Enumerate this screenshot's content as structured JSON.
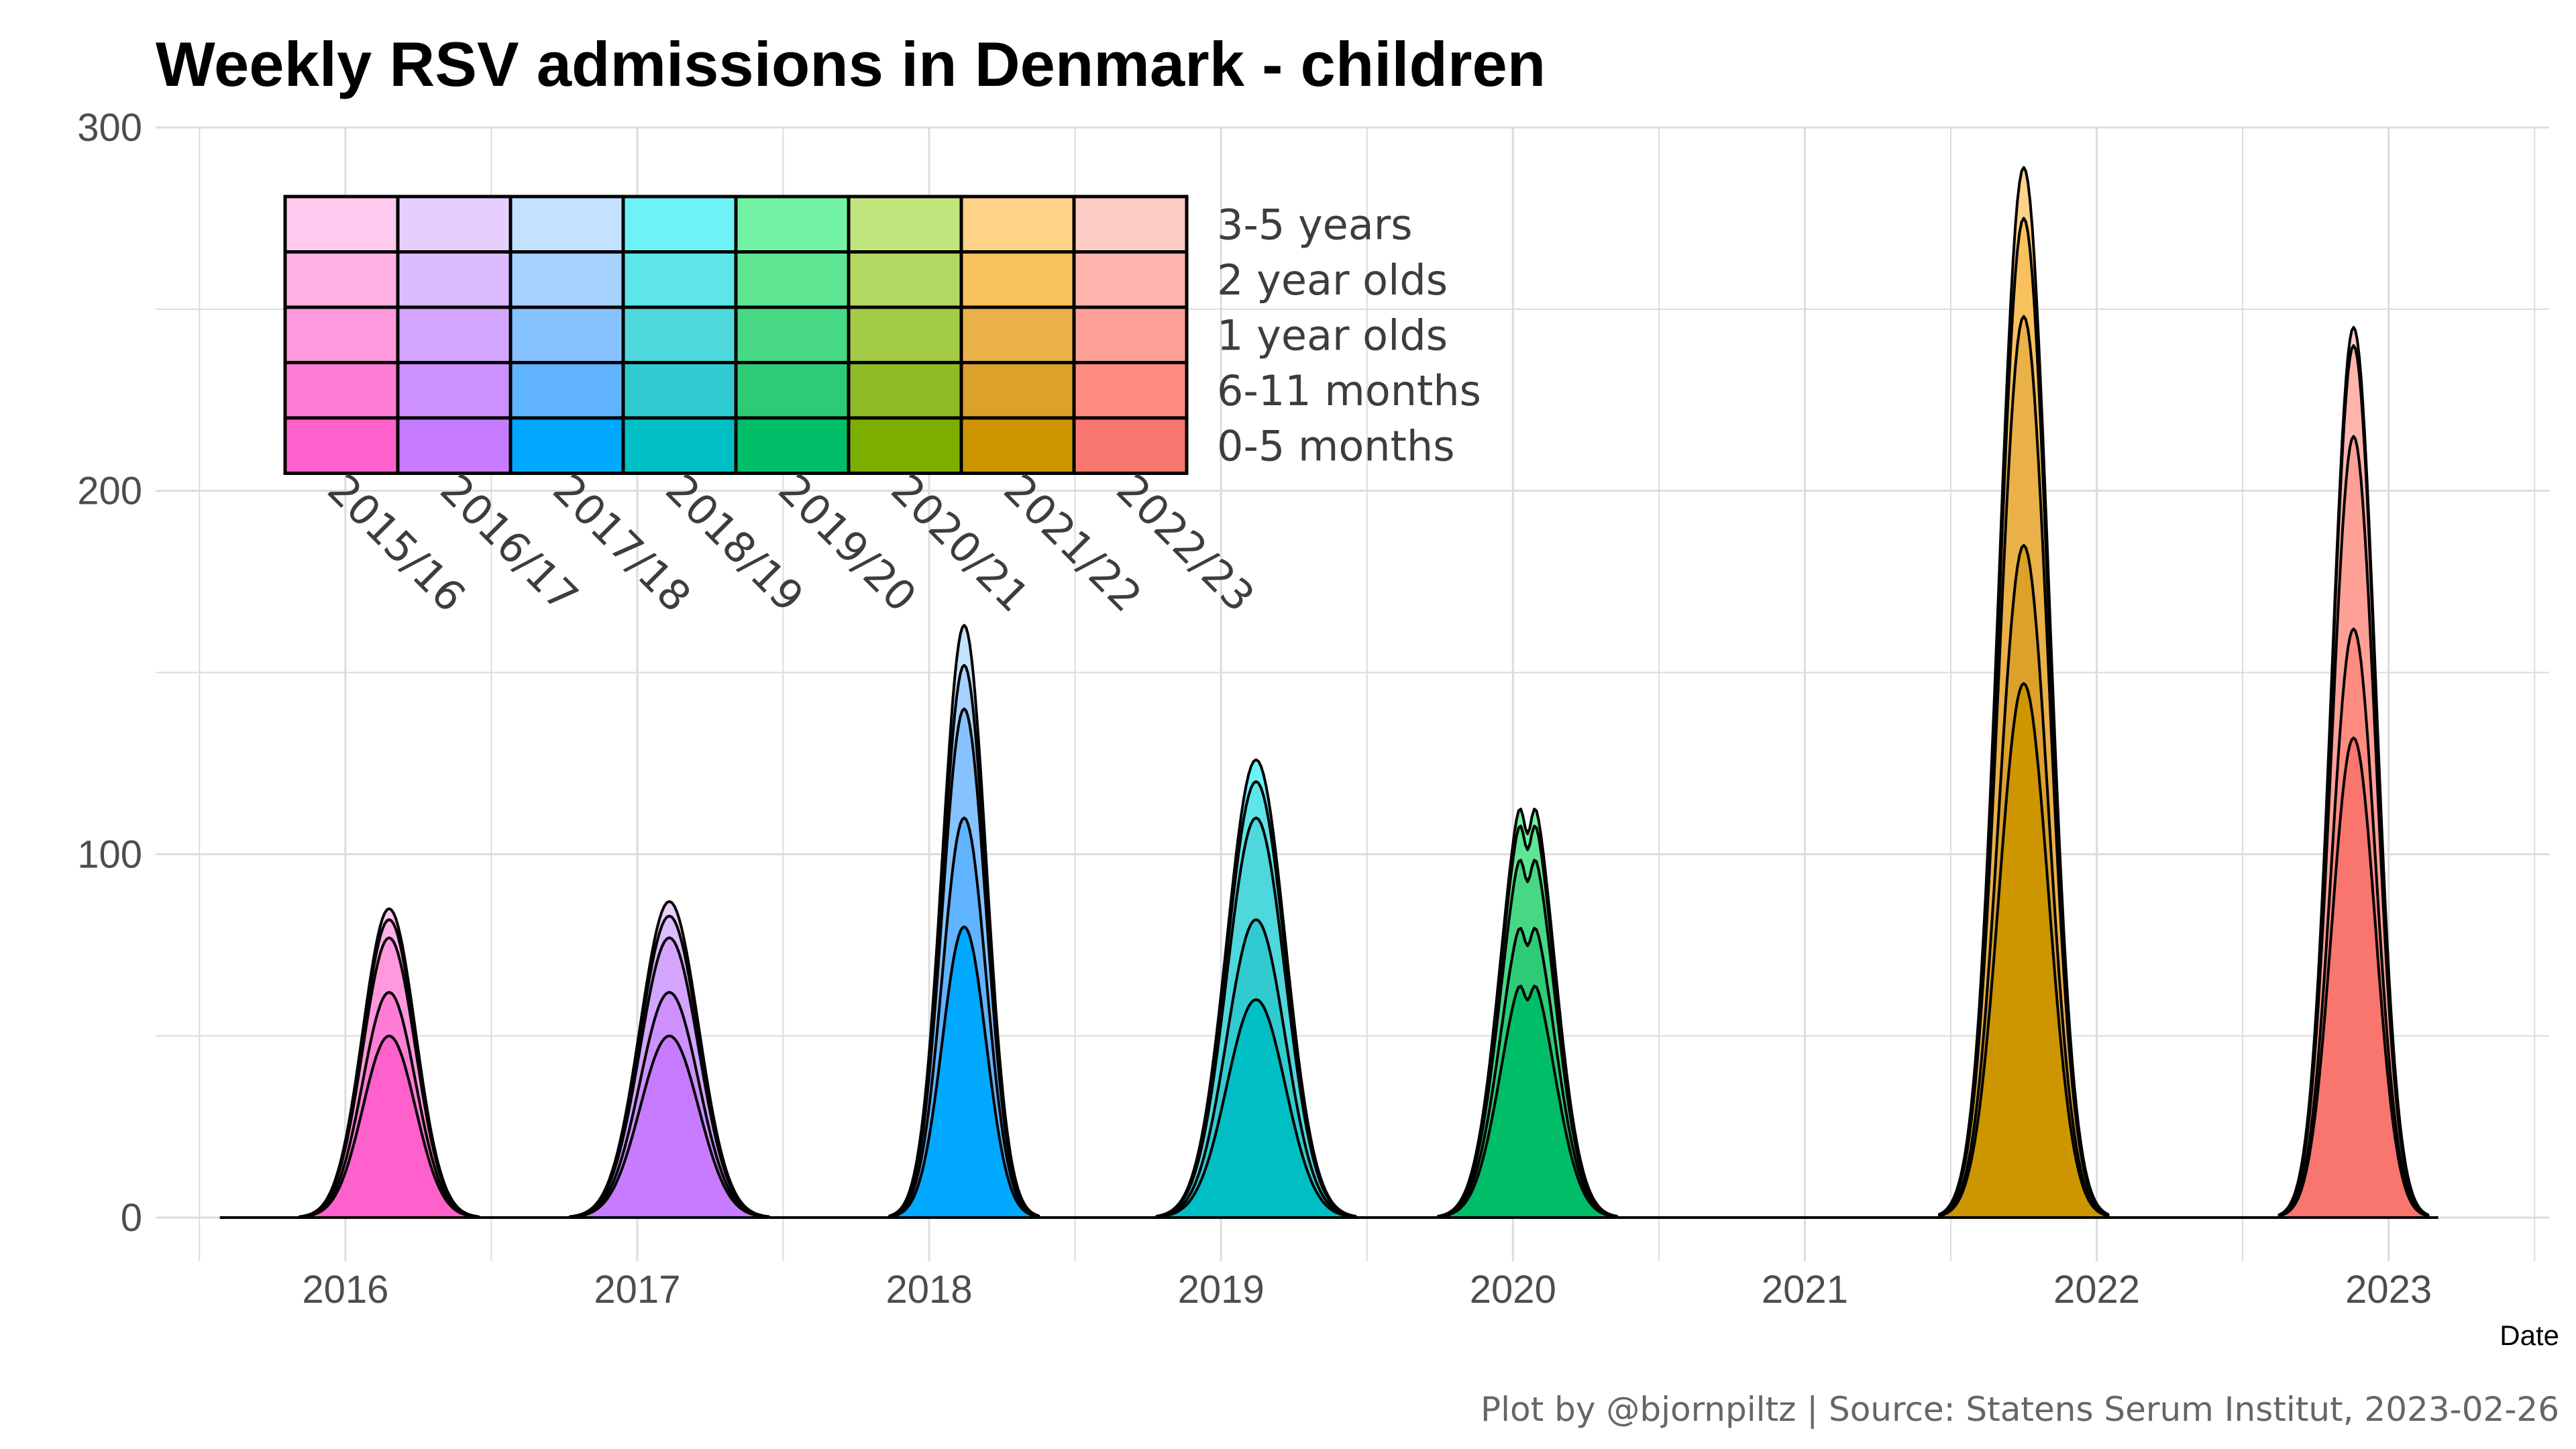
{
  "chart_data": {
    "type": "area",
    "title": "Weekly RSV admissions in Denmark - children",
    "xlabel": "Date",
    "ylabel": "",
    "caption": "Plot by @bjornpiltz | Source: Statens Serum Institut, 2023-02-26",
    "ylim": [
      -12,
      300
    ],
    "yticks": [
      0,
      100,
      200,
      300
    ],
    "xlim": [
      2015.35,
      2023.55
    ],
    "xticks": [
      2016,
      2017,
      2018,
      2019,
      2020,
      2021,
      2022,
      2023
    ],
    "x_range_data": [
      2015.57,
      2023.17
    ],
    "stacking": "stacked areas, cumulative totals per age group",
    "grid": true,
    "legend_position": "top-left, inside plot",
    "age_groups": [
      "0-5 months",
      "6-11 months",
      "1 year olds",
      "2 year olds",
      "3-5 years"
    ],
    "legend_age_order": [
      "3-5 years",
      "2 year olds",
      "1 year olds",
      "6-11 months",
      "0-5 months"
    ],
    "seasons": [
      {
        "name": "2015/16",
        "peak_x": 2016.15,
        "width": 0.09,
        "cumulative_peaks": [
          50,
          62,
          77,
          82,
          85
        ],
        "colors": [
          "#FF61CC",
          "#FF7DD4",
          "#FF98DC",
          "#FFB1E5",
          "#FFCAEE"
        ]
      },
      {
        "name": "2016/17",
        "peak_x": 2017.11,
        "width": 0.1,
        "cumulative_peaks": [
          50,
          62,
          77,
          83,
          87
        ],
        "colors": [
          "#C77CFF",
          "#CC90FF",
          "#D4A5FF",
          "#DDBBFF",
          "#E6CFFF"
        ]
      },
      {
        "name": "2017/18",
        "peak_x": 2018.12,
        "width": 0.075,
        "cumulative_peaks": [
          80,
          110,
          140,
          152,
          163
        ],
        "colors": [
          "#00A9FF",
          "#60B3FF",
          "#85C2FF",
          "#A6D2FF",
          "#C4E1FF"
        ]
      },
      {
        "name": "2018/19",
        "peak_x": 2019.12,
        "width": 0.1,
        "cumulative_peaks": [
          60,
          82,
          110,
          120,
          126
        ],
        "colors": [
          "#00BFC4",
          "#30CBD0",
          "#4ED8DD",
          "#5EE5EA",
          "#6CF2F7"
        ]
      },
      {
        "name": "2019/20",
        "peak_x": 2020.05,
        "width": 0.09,
        "cumulative_peaks": [
          68,
          85,
          105,
          115,
          120
        ],
        "colors": [
          "#00BE67",
          "#2DCB75",
          "#47D884",
          "#5EE693",
          "#72F3A3"
        ]
      },
      {
        "name": "2020/21",
        "peak_x": null,
        "width": 0.1,
        "cumulative_peaks": [
          0,
          0,
          0,
          0,
          0
        ],
        "colors": [
          "#7CAE00",
          "#8FBC26",
          "#A2CA45",
          "#B3D862",
          "#C2E67E"
        ]
      },
      {
        "name": "2021/22",
        "peak_x": 2021.75,
        "width": 0.085,
        "cumulative_peaks": [
          147,
          185,
          248,
          275,
          289
        ],
        "colors": [
          "#CD9600",
          "#DCA12A",
          "#EAB148",
          "#F8C15D",
          "#FFD28A"
        ]
      },
      {
        "name": "2022/23",
        "peak_x": 2022.88,
        "width": 0.075,
        "cumulative_peaks": [
          132,
          162,
          215,
          240,
          245
        ],
        "colors": [
          "#F8766D",
          "#FF8B81",
          "#FFA097",
          "#FFB5AD",
          "#FFCBC5"
        ]
      }
    ]
  }
}
